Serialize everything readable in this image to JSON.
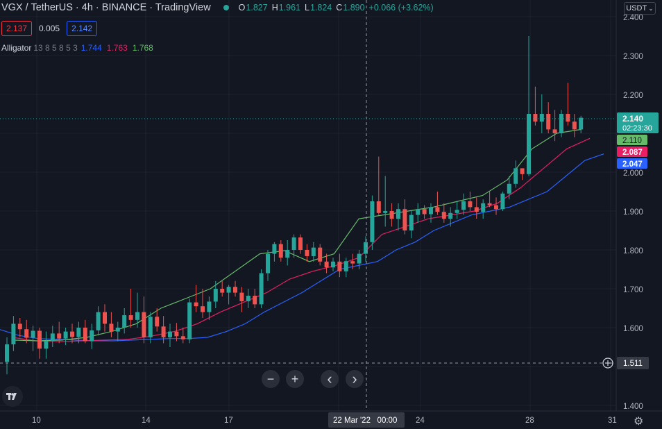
{
  "header": {
    "title": "VGX / TetherUS · 4h · BINANCE · TradingView",
    "ohlc": [
      {
        "key": "O",
        "value": "1.827"
      },
      {
        "key": "H",
        "value": "1.961"
      },
      {
        "key": "L",
        "value": "1.824"
      },
      {
        "key": "C",
        "value": "1.890"
      }
    ],
    "change": "+0.066 (+3.62%)"
  },
  "order": {
    "sell": "2.137",
    "spread": "0.005",
    "buy": "2.142"
  },
  "indicator": {
    "name": "Alligator",
    "params": "13 8 5 8 5 3",
    "jaw": "1.744",
    "teeth": "1.763",
    "lips": "1.768"
  },
  "currency_button": "USDT",
  "price_axis": {
    "ticks": [
      "2.400",
      "2.300",
      "2.200",
      "2.000",
      "1.900",
      "1.800",
      "1.700",
      "1.600",
      "1.400"
    ],
    "last_price": "2.140",
    "countdown": "02:23:30",
    "lips_label": "2.110",
    "teeth_label": "2.087",
    "jaw_label": "2.047",
    "crosshair_price": "1.511"
  },
  "time_axis": {
    "ticks": [
      "10",
      "14",
      "17",
      "24",
      "28",
      "31"
    ],
    "crosshair_time": "22 Mar '22   00:00"
  },
  "colors": {
    "up": "#26a69a",
    "down": "#ef5350",
    "jaw": "#2962ff",
    "teeth": "#e91e63",
    "lips": "#66bb6a",
    "bg": "#131722"
  },
  "navigation": {
    "zoom_out": "−",
    "zoom_in": "+",
    "scroll_left": "‹",
    "scroll_right": "›"
  },
  "icons": {
    "logo": "tradingview-logo-icon",
    "settings": "gear-icon",
    "crosshair": "plus-circle-icon"
  },
  "chart_data": {
    "type": "candlestick",
    "symbol": "VGX / TetherUS",
    "interval": "4h",
    "ylim": [
      1.38,
      2.42
    ],
    "candles": [
      [
        1.512,
        1.575,
        1.48,
        1.557
      ],
      [
        1.557,
        1.63,
        1.54,
        1.61
      ],
      [
        1.61,
        1.625,
        1.575,
        1.596
      ],
      [
        1.596,
        1.62,
        1.56,
        1.574
      ],
      [
        1.574,
        1.605,
        1.54,
        1.592
      ],
      [
        1.592,
        1.6,
        1.52,
        1.546
      ],
      [
        1.546,
        1.59,
        1.52,
        1.566
      ],
      [
        1.566,
        1.605,
        1.55,
        1.585
      ],
      [
        1.585,
        1.615,
        1.56,
        1.572
      ],
      [
        1.572,
        1.6,
        1.555,
        1.59
      ],
      [
        1.59,
        1.61,
        1.56,
        1.576
      ],
      [
        1.576,
        1.615,
        1.56,
        1.6
      ],
      [
        1.6,
        1.62,
        1.56,
        1.565
      ],
      [
        1.565,
        1.61,
        1.545,
        1.593
      ],
      [
        1.593,
        1.655,
        1.58,
        1.64
      ],
      [
        1.64,
        1.66,
        1.59,
        1.61
      ],
      [
        1.61,
        1.64,
        1.575,
        1.59
      ],
      [
        1.59,
        1.615,
        1.565,
        1.6
      ],
      [
        1.6,
        1.65,
        1.585,
        1.632
      ],
      [
        1.632,
        1.7,
        1.6,
        1.62
      ],
      [
        1.62,
        1.69,
        1.6,
        1.64
      ],
      [
        1.64,
        1.68,
        1.56,
        1.575
      ],
      [
        1.575,
        1.64,
        1.56,
        1.628
      ],
      [
        1.628,
        1.65,
        1.59,
        1.603
      ],
      [
        1.603,
        1.63,
        1.56,
        1.575
      ],
      [
        1.575,
        1.61,
        1.55,
        1.59
      ],
      [
        1.59,
        1.612,
        1.565,
        1.578
      ],
      [
        1.578,
        1.6,
        1.56,
        1.57
      ],
      [
        1.57,
        1.675,
        1.56,
        1.665
      ],
      [
        1.665,
        1.71,
        1.64,
        1.655
      ],
      [
        1.655,
        1.7,
        1.625,
        1.64
      ],
      [
        1.64,
        1.68,
        1.62,
        1.667
      ],
      [
        1.667,
        1.72,
        1.65,
        1.7
      ],
      [
        1.7,
        1.72,
        1.68,
        1.69
      ],
      [
        1.69,
        1.71,
        1.66,
        1.705
      ],
      [
        1.705,
        1.72,
        1.68,
        1.69
      ],
      [
        1.69,
        1.705,
        1.64,
        1.668
      ],
      [
        1.668,
        1.7,
        1.65,
        1.682
      ],
      [
        1.682,
        1.7,
        1.65,
        1.66
      ],
      [
        1.66,
        1.75,
        1.65,
        1.74
      ],
      [
        1.74,
        1.8,
        1.72,
        1.79
      ],
      [
        1.79,
        1.82,
        1.77,
        1.815
      ],
      [
        1.815,
        1.825,
        1.77,
        1.78
      ],
      [
        1.78,
        1.825,
        1.76,
        1.8
      ],
      [
        1.8,
        1.84,
        1.78,
        1.832
      ],
      [
        1.832,
        1.84,
        1.79,
        1.8
      ],
      [
        1.8,
        1.815,
        1.77,
        1.784
      ],
      [
        1.784,
        1.82,
        1.77,
        1.806
      ],
      [
        1.806,
        1.815,
        1.76,
        1.77
      ],
      [
        1.77,
        1.79,
        1.74,
        1.755
      ],
      [
        1.755,
        1.78,
        1.745,
        1.77
      ],
      [
        1.77,
        1.79,
        1.73,
        1.745
      ],
      [
        1.745,
        1.78,
        1.73,
        1.771
      ],
      [
        1.771,
        1.79,
        1.75,
        1.765
      ],
      [
        1.765,
        1.8,
        1.75,
        1.79
      ],
      [
        1.79,
        1.835,
        1.77,
        1.82
      ],
      [
        1.82,
        1.94,
        1.8,
        1.925
      ],
      [
        1.925,
        2.04,
        1.89,
        1.895
      ],
      [
        1.895,
        1.99,
        1.86,
        1.9
      ],
      [
        1.9,
        1.92,
        1.86,
        1.88
      ],
      [
        1.88,
        1.92,
        1.85,
        1.905
      ],
      [
        1.905,
        1.93,
        1.84,
        1.85
      ],
      [
        1.85,
        1.9,
        1.83,
        1.89
      ],
      [
        1.89,
        1.92,
        1.87,
        1.905
      ],
      [
        1.905,
        1.915,
        1.88,
        1.892
      ],
      [
        1.892,
        1.92,
        1.87,
        1.91
      ],
      [
        1.91,
        1.95,
        1.89,
        1.898
      ],
      [
        1.898,
        1.92,
        1.87,
        1.88
      ],
      [
        1.88,
        1.91,
        1.86,
        1.895
      ],
      [
        1.895,
        1.925,
        1.88,
        1.903
      ],
      [
        1.903,
        1.945,
        1.89,
        1.925
      ],
      [
        1.925,
        1.95,
        1.9,
        1.91
      ],
      [
        1.91,
        1.935,
        1.88,
        1.898
      ],
      [
        1.898,
        1.93,
        1.88,
        1.92
      ],
      [
        1.92,
        1.95,
        1.91,
        1.915
      ],
      [
        1.915,
        1.935,
        1.89,
        1.905
      ],
      [
        1.905,
        1.95,
        1.9,
        1.945
      ],
      [
        1.945,
        1.99,
        1.93,
        1.97
      ],
      [
        1.97,
        2.03,
        1.96,
        2.01
      ],
      [
        2.01,
        2.0,
        1.98,
        1.995
      ],
      [
        1.995,
        2.35,
        1.99,
        2.15
      ],
      [
        2.15,
        2.22,
        2.12,
        2.13
      ],
      [
        2.13,
        2.2,
        2.1,
        2.15
      ],
      [
        2.15,
        2.18,
        2.1,
        2.11
      ],
      [
        2.11,
        2.16,
        2.08,
        2.1
      ],
      [
        2.1,
        2.16,
        2.09,
        2.15
      ],
      [
        2.15,
        2.23,
        2.12,
        2.13
      ],
      [
        2.13,
        2.15,
        2.09,
        2.11
      ],
      [
        2.11,
        2.145,
        2.1,
        2.14
      ]
    ],
    "alligator": {
      "jaw": [
        1.595,
        1.58,
        1.572,
        1.57,
        1.568,
        1.566,
        1.566,
        1.568,
        1.57,
        1.572,
        1.572,
        1.575,
        1.59,
        1.61,
        1.64,
        1.665,
        1.69,
        1.72,
        1.75,
        1.76,
        1.77,
        1.8,
        1.82,
        1.85,
        1.87,
        1.89,
        1.9,
        1.91,
        1.93,
        1.95,
        1.99,
        2.03,
        2.047
      ],
      "teeth": [
        1.575,
        1.566,
        1.564,
        1.566,
        1.568,
        1.57,
        1.578,
        1.59,
        1.61,
        1.64,
        1.665,
        1.69,
        1.725,
        1.745,
        1.76,
        1.78,
        1.84,
        1.86,
        1.88,
        1.89,
        1.9,
        1.92,
        1.96,
        2.01,
        2.06,
        2.087
      ],
      "lips": [
        1.568,
        1.566,
        1.568,
        1.575,
        1.59,
        1.61,
        1.65,
        1.675,
        1.7,
        1.745,
        1.79,
        1.798,
        1.77,
        1.79,
        1.88,
        1.89,
        1.9,
        1.91,
        1.925,
        1.94,
        1.98,
        2.06,
        2.1,
        2.11
      ]
    }
  }
}
